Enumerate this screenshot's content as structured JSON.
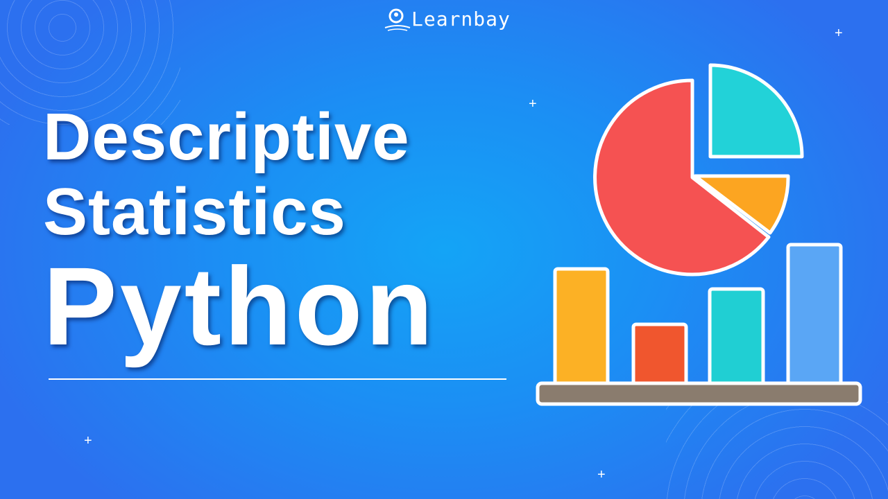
{
  "brand": {
    "name": "Learnbay",
    "logo_icon": "bulb-person-icon"
  },
  "title": {
    "line1": "Descriptive",
    "line2": "Statistics",
    "line3": "Python"
  },
  "colors": {
    "background": "#1b8ff4",
    "pie_red": "#f55252",
    "pie_teal": "#22d2d8",
    "pie_orange": "#fca521",
    "bar_yellow": "#fcb125",
    "bar_red": "#f0562e",
    "bar_teal": "#20cfd3",
    "bar_blue": "#5aa6f5",
    "shelf": "#8a7c6e"
  }
}
